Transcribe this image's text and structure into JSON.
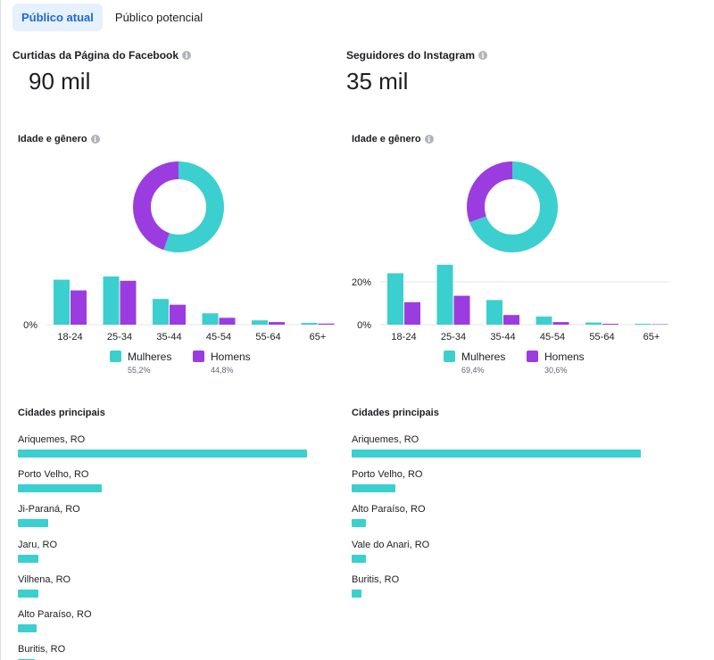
{
  "tabs": [
    {
      "label": "Público atual",
      "active": true
    },
    {
      "label": "Público potencial",
      "active": false
    }
  ],
  "colors": {
    "women": "#3ccfcf",
    "men": "#9b3ce0",
    "grid": "#e4e6eb"
  },
  "facebook": {
    "metric_title": "Curtidas da Página do Facebook",
    "metric_value": "90 mil",
    "age_gender_title": "Idade e gênero",
    "cities_title": "Cidades principais"
  },
  "instagram": {
    "metric_title": "Seguidores do Instagram",
    "metric_value": "35 mil",
    "age_gender_title": "Idade e gênero",
    "cities_title": "Cidades principais"
  },
  "chart_data": [
    {
      "id": "facebook_age_gender",
      "type": "bar",
      "title": "Idade e gênero",
      "categories": [
        "18-24",
        "25-34",
        "35-44",
        "45-54",
        "55-64",
        "65+"
      ],
      "series": [
        {
          "name": "Mulheres",
          "values": [
            21,
            22.5,
            12,
            5.3,
            2,
            0.8
          ]
        },
        {
          "name": "Homens",
          "values": [
            16,
            20.5,
            9.3,
            3.2,
            1.2,
            0.5
          ]
        }
      ],
      "ylim": [
        0,
        30
      ],
      "yticks": [
        {
          "value": 0,
          "label": "0%"
        }
      ],
      "donut": [
        {
          "name": "Mulheres",
          "value": 55.2,
          "label": "55,2%"
        },
        {
          "name": "Homens",
          "value": 44.8,
          "label": "44,8%"
        }
      ]
    },
    {
      "id": "instagram_age_gender",
      "type": "bar",
      "title": "Idade e gênero",
      "categories": [
        "18-24",
        "25-34",
        "35-44",
        "45-54",
        "55-64",
        "65+"
      ],
      "series": [
        {
          "name": "Mulheres",
          "values": [
            24,
            28,
            11.5,
            3.8,
            1,
            0.4
          ]
        },
        {
          "name": "Homens",
          "values": [
            10.5,
            13.5,
            4.5,
            1.2,
            0.4,
            0.2
          ]
        }
      ],
      "ylim": [
        0,
        30
      ],
      "yticks": [
        {
          "value": 0,
          "label": "0%"
        },
        {
          "value": 20,
          "label": "20%"
        }
      ],
      "donut": [
        {
          "name": "Mulheres",
          "value": 69.4,
          "label": "69,4%"
        },
        {
          "name": "Homens",
          "value": 30.6,
          "label": "30,6%"
        }
      ]
    },
    {
      "id": "facebook_cities",
      "type": "bar",
      "title": "Cidades principais",
      "categories": [
        "Ariquemes, RO",
        "Porto Velho, RO",
        "Ji-Paraná, RO",
        "Jaru, RO",
        "Vilhena, RO",
        "Alto Paraíso, RO",
        "Buritis, RO"
      ],
      "values": [
        100,
        29,
        10.5,
        7,
        7,
        6.5,
        6
      ],
      "xlim": [
        0,
        100
      ]
    },
    {
      "id": "instagram_cities",
      "type": "bar",
      "title": "Cidades principais",
      "categories": [
        "Ariquemes, RO",
        "Porto Velho, RO",
        "Alto Paraíso, RO",
        "Vale do Anari, RO",
        "Buritis, RO"
      ],
      "values": [
        100,
        15,
        5,
        5,
        3.5
      ],
      "xlim": [
        0,
        100
      ]
    }
  ]
}
